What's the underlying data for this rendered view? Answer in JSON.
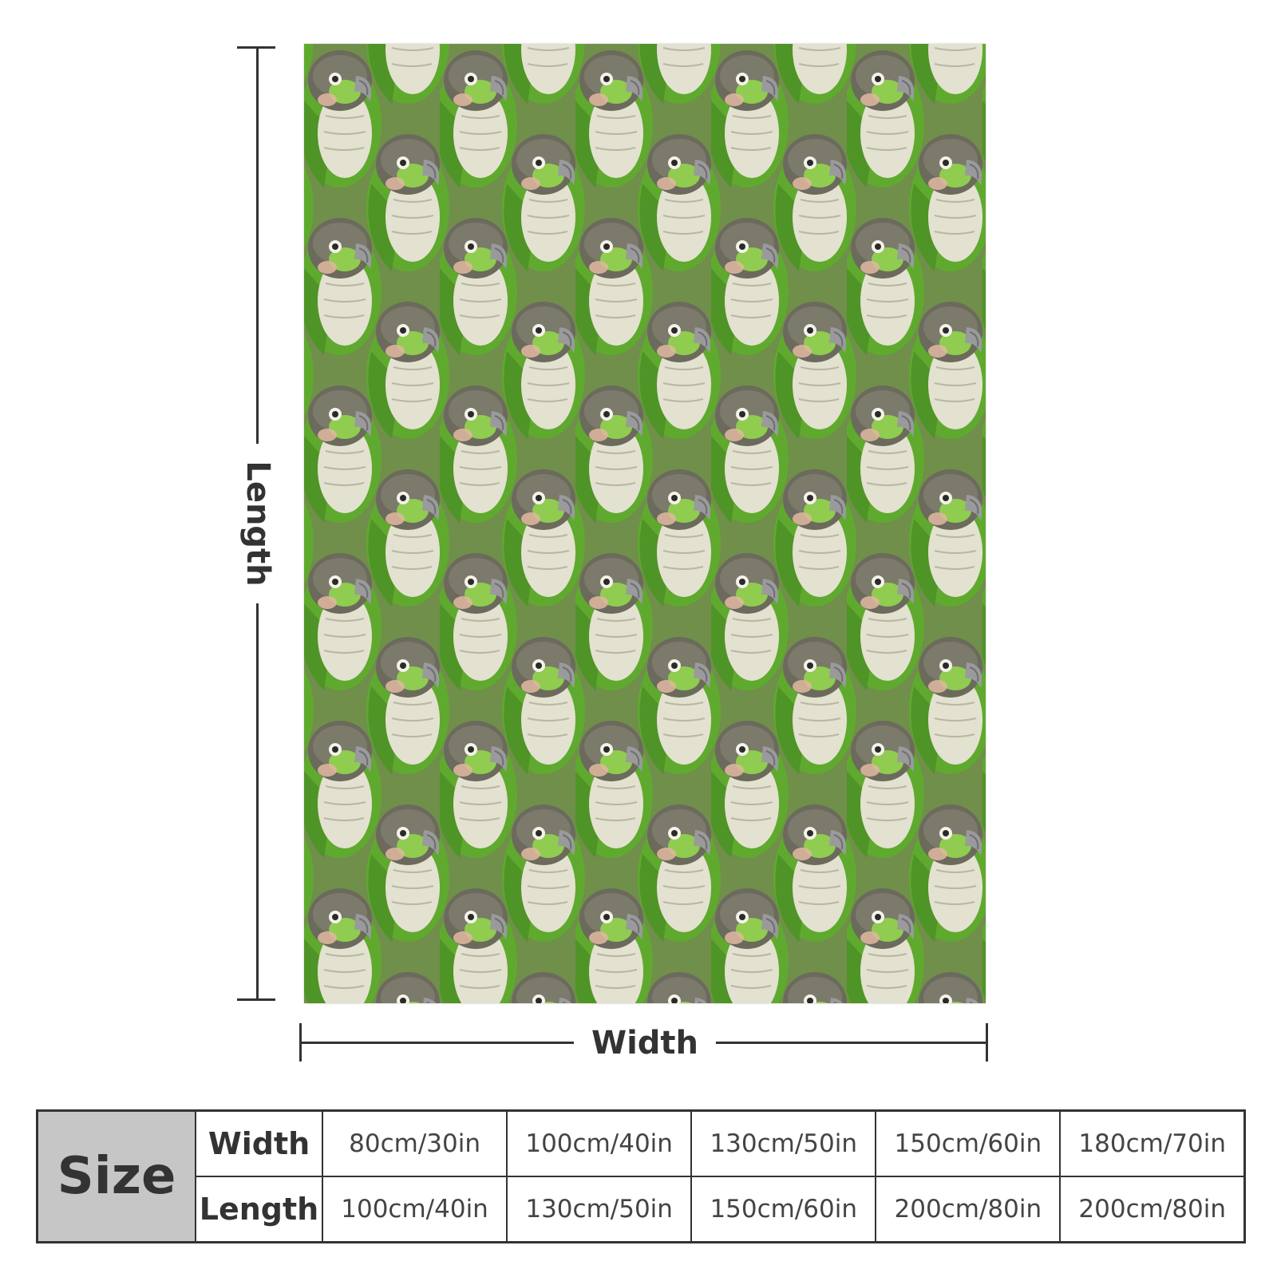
{
  "image": {
    "subject": "throw blanket with repeating green-cheeked conure parrot pattern",
    "pattern_colors": {
      "body_green": "#5faa2e",
      "light_green": "#8fcc4f",
      "cap_gray": "#6b6a5c",
      "chest_cream": "#e3e1d0",
      "cheek_peach": "#e2b9a0",
      "beak_gray": "#9a9a9c",
      "background": "#6f8f4a"
    }
  },
  "dimensions": {
    "length_label": "Length",
    "width_label": "Width"
  },
  "size_table": {
    "header": "Size",
    "rows": [
      {
        "label": "Width",
        "values": [
          "80cm/30in",
          "100cm/40in",
          "130cm/50in",
          "150cm/60in",
          "180cm/70in"
        ]
      },
      {
        "label": "Length",
        "values": [
          "100cm/40in",
          "130cm/50in",
          "150cm/60in",
          "200cm/80in",
          "200cm/80in"
        ]
      }
    ]
  },
  "colors": {
    "text": "#333333",
    "size_header_bg": "#c6c6c6",
    "border": "#333333"
  }
}
